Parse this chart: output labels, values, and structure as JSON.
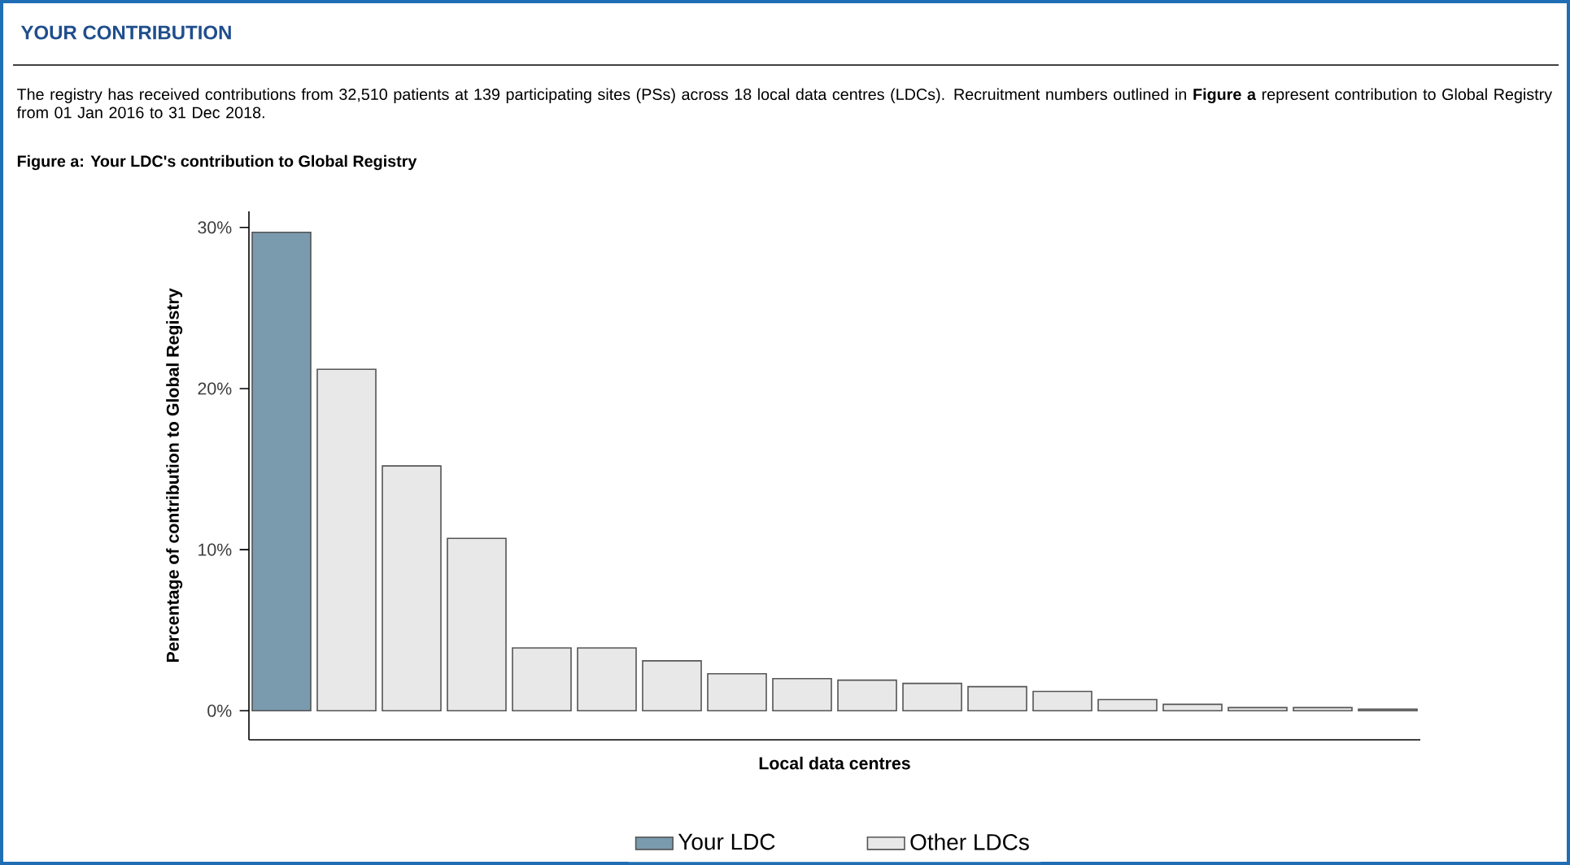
{
  "chart_data": {
    "type": "bar",
    "title": "YOUR CONTRIBUTION",
    "subtitle": "The registry has received contributions from 32,510 patients at 139 participating sites (PSs) across 18 local data centres (LDCs). Recruitment numbers outlined in **Figure a** represent contribution to Global Registry from 01 Jan 2016 to 31 Dec 2018.",
    "annotations": [
      "Figure a: Your LDC's contribution to Global Registry"
    ],
    "xlabel": "Local data centres",
    "ylabel": "Percentage of contribution to Global Registry",
    "categories": [
      null,
      null,
      null,
      null,
      null,
      null,
      null,
      null,
      null,
      null,
      null,
      null,
      null,
      null,
      null,
      null,
      null,
      null
    ],
    "series": [
      {
        "name": "Your LDC",
        "color": "#7a9aae",
        "values": [
          29.7,
          null,
          null,
          null,
          null,
          null,
          null,
          null,
          null,
          null,
          null,
          null,
          null,
          null,
          null,
          null,
          null,
          null
        ]
      },
      {
        "name": "Other LDCs",
        "color": "#e8e8e8",
        "values": [
          null,
          21.2,
          15.2,
          10.7,
          3.9,
          3.9,
          3.1,
          2.3,
          2.0,
          1.9,
          1.7,
          1.5,
          1.2,
          0.7,
          0.4,
          0.2,
          0.2,
          0.1
        ]
      }
    ],
    "ylim": [
      -1.8,
      31
    ],
    "yticks": [
      {
        "value": 0,
        "label": "0%"
      },
      {
        "value": 10,
        "label": "10%"
      },
      {
        "value": 20,
        "label": "20%"
      },
      {
        "value": 30,
        "label": "30%"
      }
    ],
    "legend": "bottom",
    "tick_labels": "y",
    "grid": false
  }
}
